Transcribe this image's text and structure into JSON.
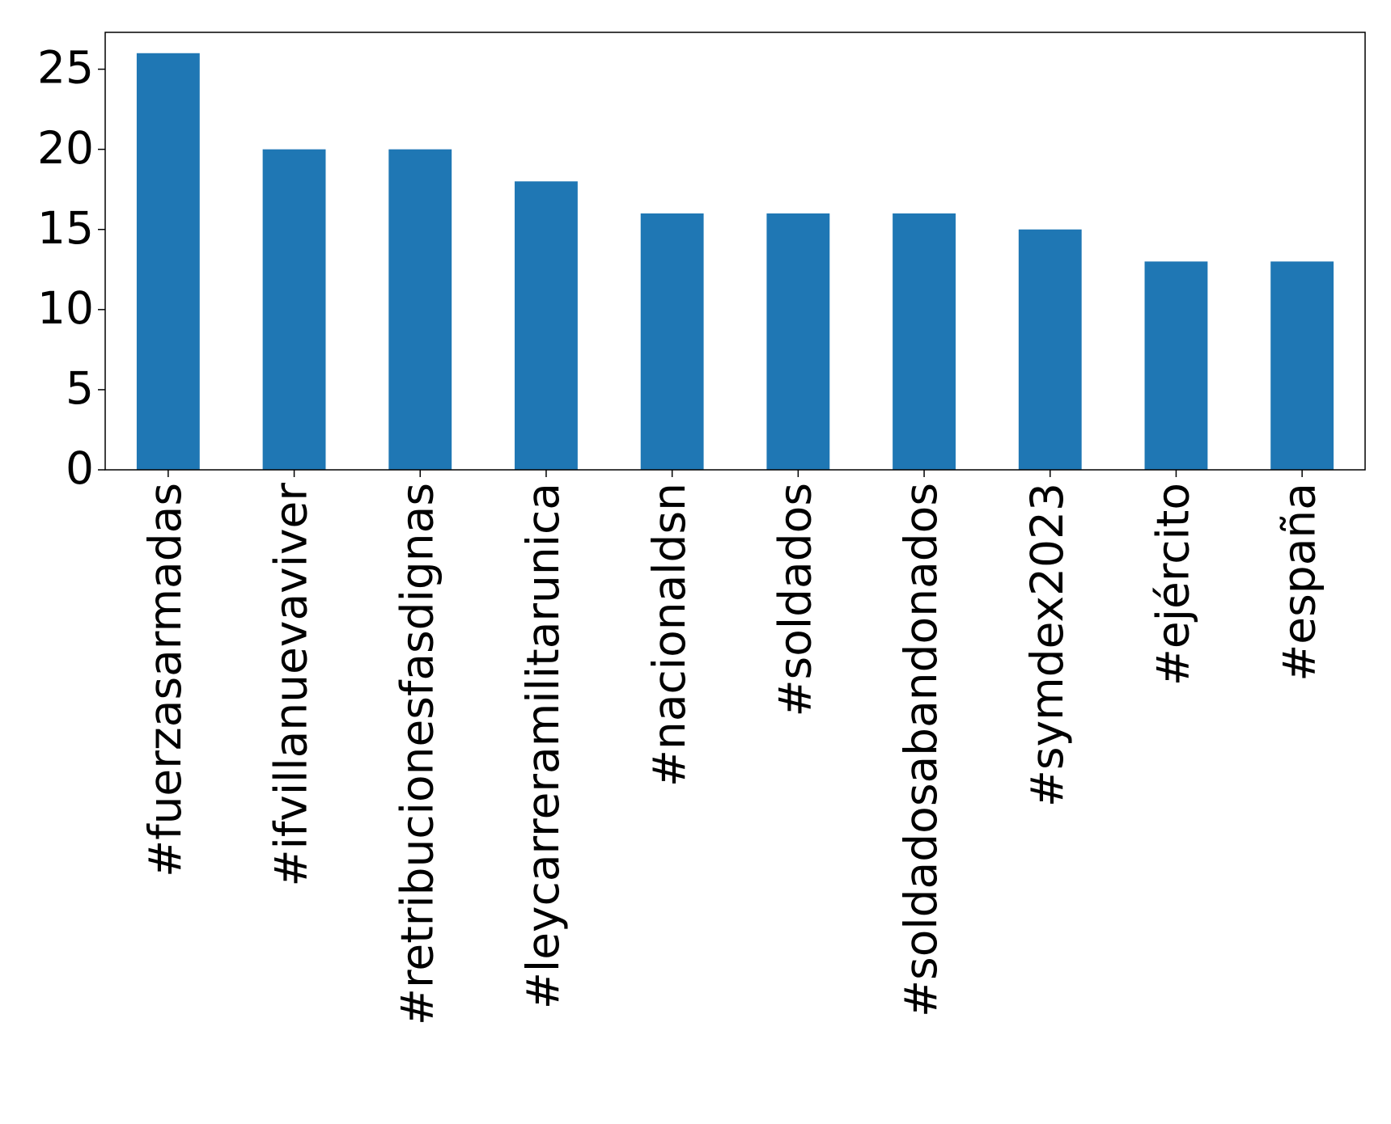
{
  "chart_data": {
    "type": "bar",
    "categories": [
      "#fuerzasarmadas",
      "#ifvillanuevaviver",
      "#retribucionesfasdignas",
      "#leycarreramilitarunica",
      "#nacionaldsn",
      "#soldados",
      "#soldadosabandonados",
      "#symdex2023",
      "#ejército",
      "#españa"
    ],
    "values": [
      26,
      20,
      20,
      18,
      16,
      16,
      16,
      15,
      13,
      13
    ],
    "color": "#1f77b4",
    "ylim": [
      0,
      27.3
    ],
    "yticks": [
      0,
      5,
      10,
      15,
      20,
      25
    ],
    "grid": false
  }
}
